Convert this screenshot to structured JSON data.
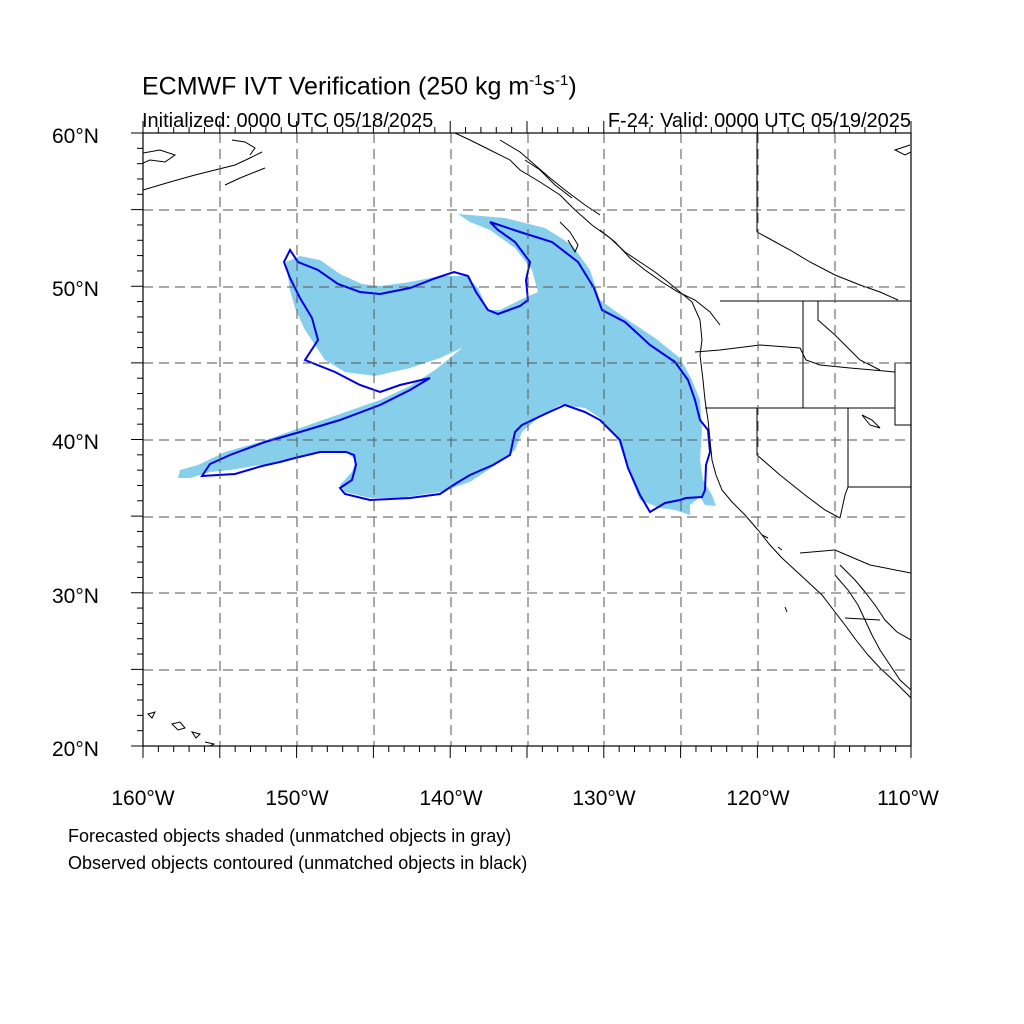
{
  "title_main": "ECMWF IVT Verification (250 kg m",
  "title_exp1": "-1",
  "title_mid": "s",
  "title_exp2": "-1",
  "title_end": ")",
  "initialized": "Initialized: 0000 UTC 05/18/2025",
  "valid": "F-24: Valid: 0000 UTC 05/19/2025",
  "lat_labels": [
    "60°N",
    "50°N",
    "40°N",
    "30°N",
    "20°N"
  ],
  "lon_labels": [
    "160°W",
    "150°W",
    "140°W",
    "130°W",
    "120°W",
    "110°W"
  ],
  "footnote_forecast": "Forecasted objects shaded (unmatched objects in gray)",
  "footnote_observed": "Observed objects contoured (unmatched objects in black)",
  "colors": {
    "forecast_fill": "#87ceeb",
    "observed_contour": "#0000e6",
    "grid": "#555555",
    "coast": "#000000"
  }
}
